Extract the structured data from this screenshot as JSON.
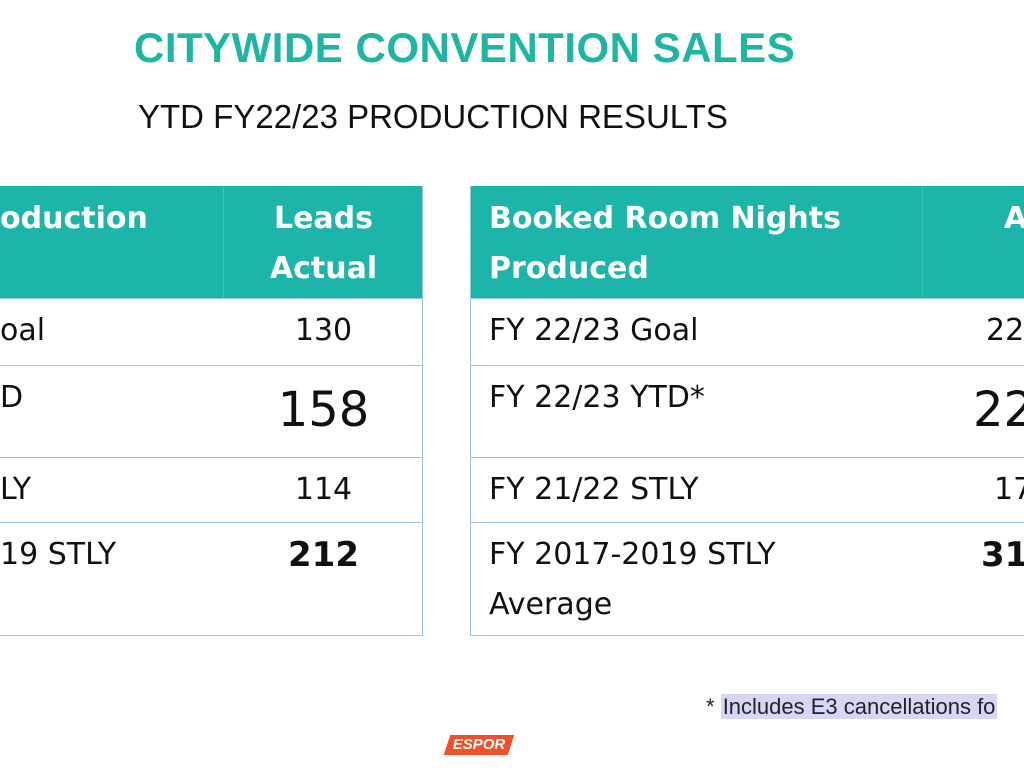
{
  "header": {
    "title": "CITYWIDE CONVENTION SALES",
    "subtitle": "YTD FY22/23 PRODUCTION RESULTS"
  },
  "tables": [
    {
      "header": [
        [
          "oduction"
        ],
        [
          "Leads",
          "Actual"
        ]
      ],
      "rows": [
        [
          [
            "oal"
          ],
          [
            "130"
          ]
        ],
        [
          [
            "D"
          ],
          [
            "158"
          ]
        ],
        [
          [
            "LY"
          ],
          [
            "114"
          ]
        ],
        [
          [
            "19 STLY"
          ],
          [
            "212"
          ]
        ]
      ]
    },
    {
      "header": [
        [
          "Booked Room Nights",
          "Produced"
        ],
        [
          "A"
        ]
      ],
      "rows": [
        [
          [
            "FY 22/23 Goal"
          ],
          [
            "22"
          ]
        ],
        [
          [
            "FY 22/23 YTD*"
          ],
          [
            "22"
          ]
        ],
        [
          [
            "FY 21/22 STLY"
          ],
          [
            "17"
          ]
        ],
        [
          [
            "FY 2017-2019 STLY",
            "Average"
          ],
          [
            "31"
          ]
        ]
      ]
    }
  ],
  "footnote": {
    "mark": "*",
    "text": "Includes E3 cancellations fo"
  },
  "logo": "ESPOR"
}
